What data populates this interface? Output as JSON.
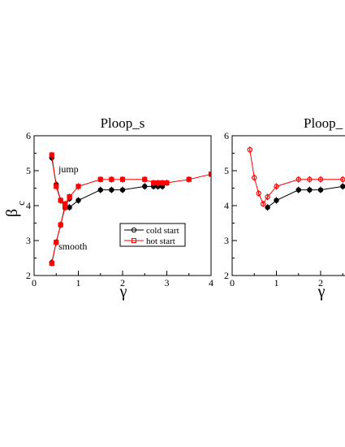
{
  "chart_data": [
    {
      "type": "line",
      "title": "Ploop_s",
      "xlabel": "γ",
      "ylabel": "β",
      "ylabel_sub": "c",
      "xlim": [
        0,
        4
      ],
      "ylim": [
        2,
        6
      ],
      "xticks": [
        0,
        1,
        2,
        3,
        4
      ],
      "yticks": [
        2,
        3,
        4,
        5,
        6
      ],
      "grid": false,
      "legend": {
        "placement": "lower-right",
        "entries": [
          "cold start",
          "hot start"
        ]
      },
      "annotations": [
        {
          "text": "jump",
          "x": 0.55,
          "y": 5.0
        },
        {
          "text": "smooth",
          "x": 0.55,
          "y": 2.75
        }
      ],
      "series": [
        {
          "name": "cold start",
          "color": "#000000",
          "marker": "circle",
          "points": [
            {
              "x": 0.4,
              "y": 5.37
            },
            {
              "x": 0.5,
              "y": 4.6
            },
            {
              "x": 0.6,
              "y": 4.15
            },
            {
              "x": 0.7,
              "y": 3.95
            },
            {
              "x": 0.8,
              "y": 3.95
            },
            {
              "x": 1.0,
              "y": 4.15
            },
            {
              "x": 1.5,
              "y": 4.45
            },
            {
              "x": 1.75,
              "y": 4.45
            },
            {
              "x": 2.0,
              "y": 4.45
            },
            {
              "x": 2.5,
              "y": 4.55
            },
            {
              "x": 2.7,
              "y": 4.55
            },
            {
              "x": 2.8,
              "y": 4.55
            },
            {
              "x": 2.9,
              "y": 4.55
            }
          ]
        },
        {
          "name": "cold start",
          "color": "#000000",
          "marker": "circle",
          "points": [
            {
              "x": 0.4,
              "y": 2.37
            },
            {
              "x": 0.5,
              "y": 2.95
            },
            {
              "x": 0.6,
              "y": 3.45
            },
            {
              "x": 0.7,
              "y": 4.0
            },
            {
              "x": 0.8,
              "y": 4.2
            }
          ]
        },
        {
          "name": "hot start",
          "color": "#ff0000",
          "marker": "square",
          "points": [
            {
              "x": 0.4,
              "y": 5.45
            },
            {
              "x": 0.5,
              "y": 4.55
            },
            {
              "x": 0.6,
              "y": 4.15
            },
            {
              "x": 0.7,
              "y": 4.05
            },
            {
              "x": 0.8,
              "y": 4.25
            },
            {
              "x": 1.0,
              "y": 4.55
            },
            {
              "x": 1.5,
              "y": 4.75
            },
            {
              "x": 1.75,
              "y": 4.75
            },
            {
              "x": 2.0,
              "y": 4.75
            },
            {
              "x": 2.5,
              "y": 4.75
            },
            {
              "x": 2.7,
              "y": 4.65
            },
            {
              "x": 2.8,
              "y": 4.65
            },
            {
              "x": 2.9,
              "y": 4.65
            },
            {
              "x": 3.0,
              "y": 4.65
            },
            {
              "x": 3.5,
              "y": 4.75
            },
            {
              "x": 4.0,
              "y": 4.9
            }
          ]
        },
        {
          "name": "hot start",
          "color": "#ff0000",
          "marker": "square",
          "points": [
            {
              "x": 0.4,
              "y": 2.35
            },
            {
              "x": 0.5,
              "y": 2.95
            },
            {
              "x": 0.6,
              "y": 3.45
            },
            {
              "x": 0.7,
              "y": 3.95
            },
            {
              "x": 0.8,
              "y": 4.25
            }
          ]
        }
      ]
    },
    {
      "type": "line",
      "title": "Ploop_",
      "xlabel": "γ",
      "ylabel": "",
      "xlim": [
        0,
        2.6
      ],
      "ylim": [
        2,
        6
      ],
      "xticks": [
        0,
        1,
        2
      ],
      "yticks": [
        2,
        3,
        4,
        5,
        6
      ],
      "grid": false,
      "series": [
        {
          "name": "cold start",
          "color": "#000000",
          "marker": "circle",
          "points": [
            {
              "x": 0.8,
              "y": 3.95
            },
            {
              "x": 1.0,
              "y": 4.15
            },
            {
              "x": 1.5,
              "y": 4.45
            },
            {
              "x": 1.75,
              "y": 4.45
            },
            {
              "x": 2.0,
              "y": 4.45
            },
            {
              "x": 2.5,
              "y": 4.55
            }
          ]
        },
        {
          "name": "hot start",
          "color": "#ff0000",
          "marker": "circle",
          "points": [
            {
              "x": 0.4,
              "y": 5.6
            },
            {
              "x": 0.5,
              "y": 4.8
            },
            {
              "x": 0.6,
              "y": 4.35
            },
            {
              "x": 0.7,
              "y": 4.05
            },
            {
              "x": 0.8,
              "y": 4.25
            },
            {
              "x": 1.0,
              "y": 4.55
            },
            {
              "x": 1.5,
              "y": 4.75
            },
            {
              "x": 1.75,
              "y": 4.75
            },
            {
              "x": 2.0,
              "y": 4.75
            },
            {
              "x": 2.5,
              "y": 4.75
            }
          ]
        }
      ]
    }
  ]
}
